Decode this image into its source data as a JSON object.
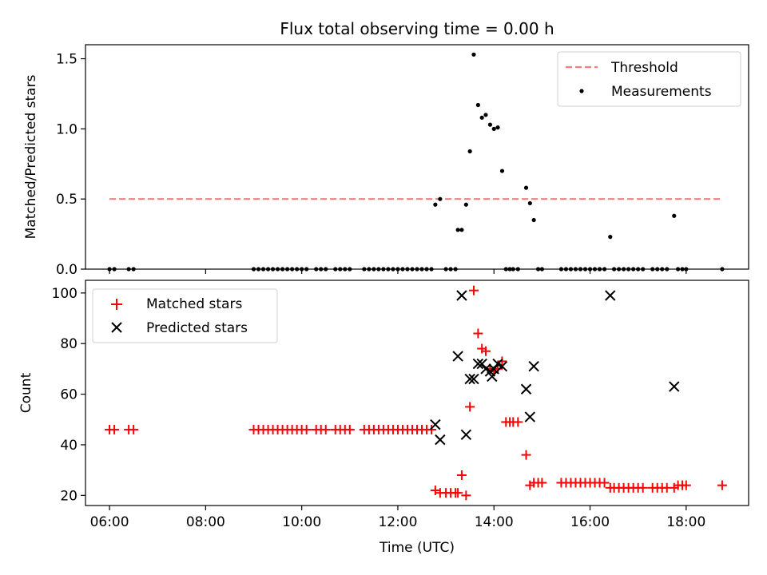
{
  "chart_data": [
    {
      "type": "scatter",
      "title": "Flux total observing time = 0.00 h",
      "xlabel": "",
      "ylabel": "Matched/Predicted stars",
      "xlim": [
        5.5,
        19.3
      ],
      "ylim": [
        0,
        1.6
      ],
      "yticks": [
        0.0,
        0.5,
        1.0,
        1.5
      ],
      "ytick_labels": [
        "0.0",
        "0.5",
        "1.0",
        "1.5"
      ],
      "legend_position": "top-right",
      "threshold": {
        "name": "Threshold",
        "value": 0.5,
        "x_start": 6.0,
        "x_end": 18.75,
        "color": "#f08080",
        "style": "dashed"
      },
      "series": [
        {
          "name": "Measurements",
          "color": "#000000",
          "marker": "dot",
          "x": [
            6.0,
            6.1,
            6.4,
            6.5,
            9.0,
            9.1,
            9.2,
            9.3,
            9.4,
            9.5,
            9.6,
            9.7,
            9.8,
            9.9,
            10.0,
            10.1,
            10.3,
            10.4,
            10.5,
            10.7,
            10.8,
            10.9,
            11.0,
            11.3,
            11.4,
            11.5,
            11.6,
            11.7,
            11.8,
            11.9,
            12.0,
            12.1,
            12.2,
            12.3,
            12.4,
            12.5,
            12.6,
            12.7,
            12.78,
            12.88,
            13.0,
            13.1,
            13.2,
            13.25,
            13.33,
            13.42,
            13.5,
            13.58,
            13.67,
            13.75,
            13.83,
            13.92,
            14.0,
            14.08,
            14.17,
            14.25,
            14.33,
            14.4,
            14.5,
            14.67,
            14.75,
            14.83,
            14.92,
            15.0,
            15.4,
            15.5,
            15.6,
            15.7,
            15.8,
            15.9,
            16.0,
            16.1,
            16.2,
            16.3,
            16.42,
            16.5,
            16.6,
            16.7,
            16.8,
            16.9,
            17.0,
            17.1,
            17.3,
            17.4,
            17.5,
            17.6,
            17.75,
            17.83,
            17.92,
            18.0,
            18.75
          ],
          "y": [
            0,
            0,
            0,
            0,
            0,
            0,
            0,
            0,
            0,
            0,
            0,
            0,
            0,
            0,
            0,
            0,
            0,
            0,
            0,
            0,
            0,
            0,
            0,
            0,
            0,
            0,
            0,
            0,
            0,
            0,
            0,
            0,
            0,
            0,
            0,
            0,
            0,
            0,
            0.46,
            0.5,
            0,
            0,
            0,
            0.28,
            0.28,
            0.46,
            0.84,
            1.53,
            1.17,
            1.08,
            1.1,
            1.03,
            1.0,
            1.01,
            0.7,
            0,
            0,
            0,
            0,
            0.58,
            0.47,
            0.35,
            0,
            0,
            0,
            0,
            0,
            0,
            0,
            0,
            0,
            0,
            0,
            0,
            0.23,
            0,
            0,
            0,
            0,
            0,
            0,
            0,
            0,
            0,
            0,
            0,
            0.38,
            0,
            0,
            0,
            0
          ]
        }
      ]
    },
    {
      "type": "scatter",
      "title": "",
      "xlabel": "Time (UTC)",
      "ylabel": "Count",
      "xlim": [
        5.5,
        19.3
      ],
      "ylim": [
        16,
        105
      ],
      "xticks": [
        6,
        8,
        10,
        12,
        14,
        16,
        18
      ],
      "xtick_labels": [
        "06:00",
        "08:00",
        "10:00",
        "12:00",
        "14:00",
        "16:00",
        "18:00"
      ],
      "yticks": [
        20,
        40,
        60,
        80,
        100
      ],
      "ytick_labels": [
        "20",
        "40",
        "60",
        "80",
        "100"
      ],
      "legend_position": "top-left",
      "series": [
        {
          "name": "Matched stars",
          "color": "#ff0000",
          "marker": "plus",
          "x": [
            6.0,
            6.1,
            6.4,
            6.5,
            9.0,
            9.1,
            9.2,
            9.3,
            9.4,
            9.5,
            9.6,
            9.7,
            9.8,
            9.9,
            10.0,
            10.1,
            10.3,
            10.4,
            10.5,
            10.7,
            10.8,
            10.9,
            11.0,
            11.3,
            11.4,
            11.5,
            11.6,
            11.7,
            11.8,
            11.9,
            12.0,
            12.1,
            12.2,
            12.3,
            12.4,
            12.5,
            12.6,
            12.7,
            12.78,
            12.88,
            13.0,
            13.1,
            13.2,
            13.25,
            13.33,
            13.42,
            13.5,
            13.58,
            13.67,
            13.75,
            13.83,
            13.92,
            14.0,
            14.08,
            14.17,
            14.25,
            14.33,
            14.4,
            14.5,
            14.67,
            14.75,
            14.83,
            14.92,
            15.0,
            15.4,
            15.5,
            15.6,
            15.7,
            15.8,
            15.9,
            16.0,
            16.1,
            16.2,
            16.3,
            16.42,
            16.5,
            16.6,
            16.7,
            16.8,
            16.9,
            17.0,
            17.1,
            17.3,
            17.4,
            17.5,
            17.6,
            17.75,
            17.83,
            17.92,
            18.0,
            18.75
          ],
          "y": [
            46,
            46,
            46,
            46,
            46,
            46,
            46,
            46,
            46,
            46,
            46,
            46,
            46,
            46,
            46,
            46,
            46,
            46,
            46,
            46,
            46,
            46,
            46,
            46,
            46,
            46,
            46,
            46,
            46,
            46,
            46,
            46,
            46,
            46,
            46,
            46,
            46,
            46,
            22,
            21,
            21,
            21,
            21,
            21,
            28,
            20,
            55,
            101,
            84,
            78,
            77,
            70,
            69,
            70,
            73,
            49,
            49,
            49,
            49,
            36,
            24,
            25,
            25,
            25,
            25,
            25,
            25,
            25,
            25,
            25,
            25,
            25,
            25,
            25,
            23,
            23,
            23,
            23,
            23,
            23,
            23,
            23,
            23,
            23,
            23,
            23,
            23,
            24,
            24,
            24,
            24
          ]
        },
        {
          "name": "Predicted stars",
          "color": "#000000",
          "marker": "x",
          "x": [
            12.78,
            12.88,
            13.25,
            13.33,
            13.42,
            13.5,
            13.58,
            13.67,
            13.75,
            13.83,
            13.92,
            13.96,
            14.0,
            14.08,
            14.17,
            14.67,
            14.75,
            14.83,
            16.42,
            17.75
          ],
          "y": [
            48,
            42,
            75,
            99,
            44,
            66,
            66,
            72,
            72,
            70,
            69,
            67,
            70,
            72,
            71,
            62,
            51,
            71,
            99,
            63
          ]
        }
      ]
    }
  ]
}
